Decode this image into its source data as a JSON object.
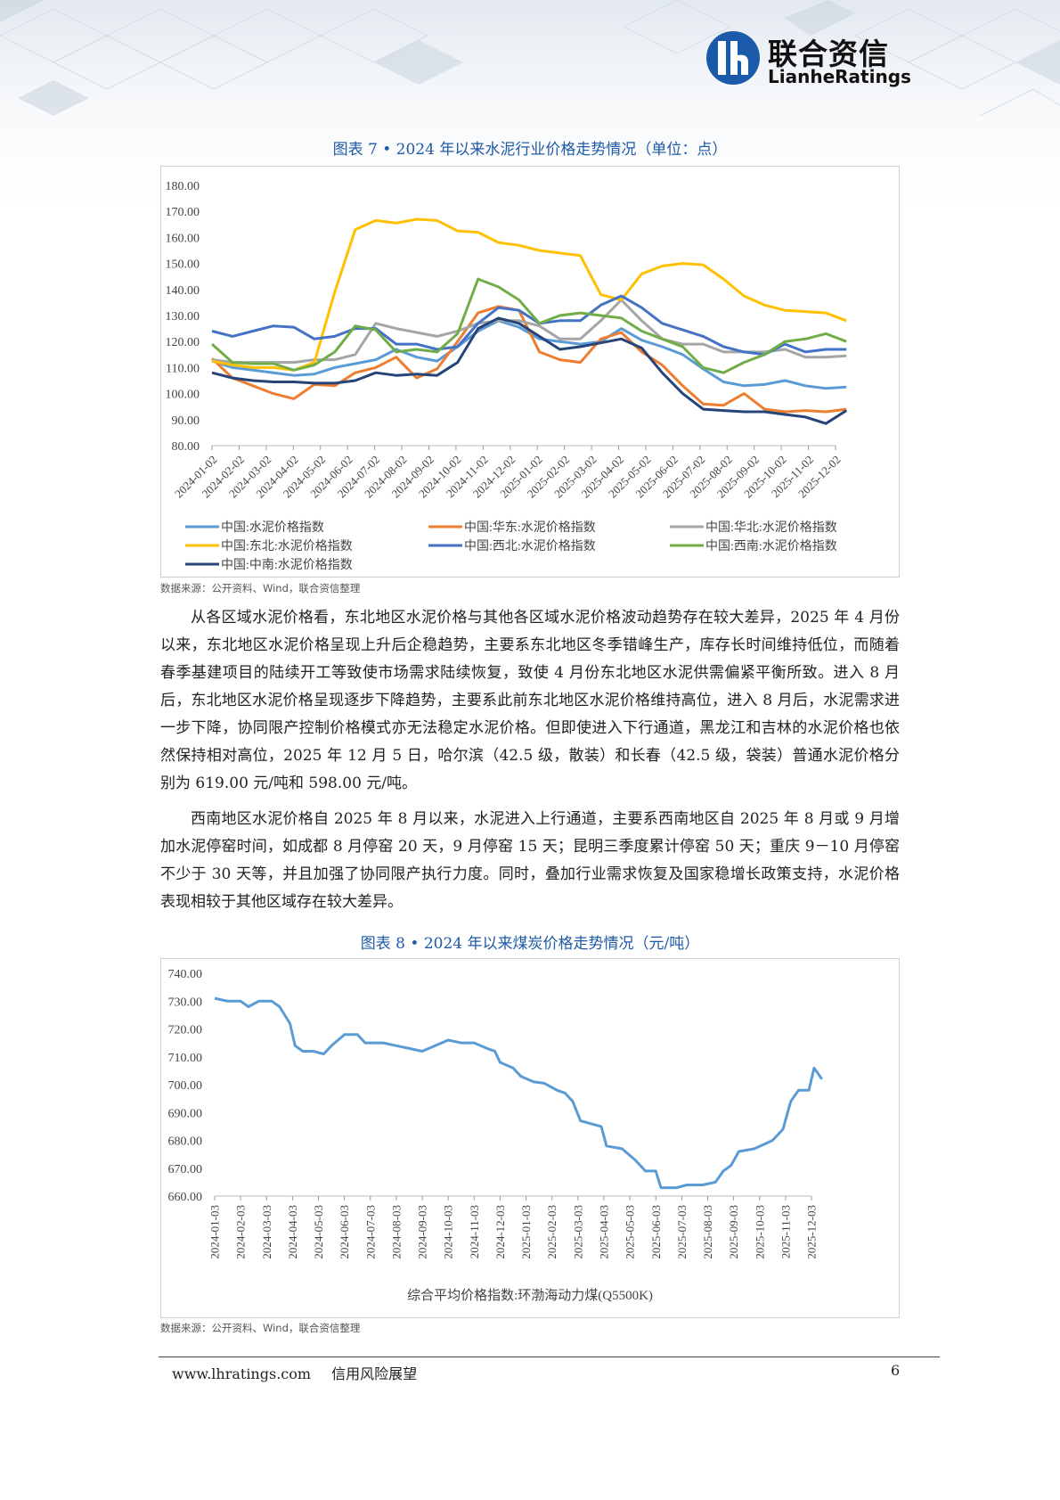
{
  "header": {
    "logo_cn": "联合资信",
    "logo_en": "LianheRatings",
    "brand_color": "#1a5aa8"
  },
  "figure7": {
    "title": "图表 7 • 2024 年以来水泥行业价格走势情况（单位：点）",
    "source": "数据来源：公开资料、Wind，联合资信整理"
  },
  "figure8": {
    "title": "图表 8 • 2024 年以来煤炭价格走势情况（元/吨）",
    "source": "数据来源：公开资料、Wind，联合资信整理"
  },
  "paragraphs": [
    "从各区域水泥价格看，东北地区水泥价格与其他各区域水泥价格波动趋势存在较大差异，2025 年 4 月份以来，东北地区水泥价格呈现上升后企稳趋势，主要系东北地区冬季错峰生产，库存长时间维持低位，而随着春季基建项目的陆续开工等致使市场需求陆续恢复，致使 4 月份东北地区水泥供需偏紧平衡所致。进入 8 月后，东北地区水泥价格呈现逐步下降趋势，主要系此前东北地区水泥价格维持高位，进入 8 月后，水泥需求进一步下降，协同限产控制价格模式亦无法稳定水泥价格。但即使进入下行通道，黑龙江和吉林的水泥价格也依然保持相对高位，2025 年 12 月 5 日，哈尔滨（42.5 级，散装）和长春（42.5 级，袋装）普通水泥价格分别为 619.00 元/吨和 598.00 元/吨。",
    "西南地区水泥价格自 2025 年 8 月以来，水泥进入上行通道，主要系西南地区自 2025 年 8 月或 9 月增加水泥停窑时间，如成都 8 月停窑 20 天，9 月停窑 15 天；昆明三季度累计停窑 50 天；重庆 9－10 月停窑不少于 30 天等，并且加强了协同限产执行力度。同时，叠加行业需求恢复及国家稳增长政策支持，水泥价格表现相较于其他区域存在较大差异。"
  ],
  "footer": {
    "site": "www.lhratings.com",
    "slogan": "信用风险展望",
    "page": "6"
  },
  "chart_data": [
    {
      "type": "line",
      "ylim": [
        80,
        180
      ],
      "yticks": [
        "180.00",
        "170.00",
        "160.00",
        "150.00",
        "140.00",
        "130.00",
        "120.00",
        "110.00",
        "100.00",
        "90.00",
        "80.00"
      ],
      "x_labels": [
        "2024-01-02",
        "2024-02-02",
        "2024-03-02",
        "2024-04-02",
        "2024-05-02",
        "2024-06-02",
        "2024-07-02",
        "2024-08-02",
        "2024-09-02",
        "2024-10-02",
        "2024-11-02",
        "2024-12-02",
        "2025-01-02",
        "2025-02-02",
        "2025-03-02",
        "2025-04-02",
        "2025-05-02",
        "2025-06-02",
        "2025-07-02",
        "2025-08-02",
        "2025-09-02",
        "2025-10-02",
        "2025-11-02",
        "2025-12-02"
      ],
      "x_end": 23.4,
      "series": [
        {
          "name": "中国:水泥价格指数",
          "color": "#5b9bd5",
          "values": [
            112.5,
            110,
            109,
            108,
            107,
            107.5,
            110,
            111.5,
            113,
            117,
            114,
            112.5,
            118,
            124,
            128,
            125.5,
            121,
            120,
            119,
            120,
            125,
            120.5,
            118,
            115,
            109.5,
            104.5,
            103,
            103.5,
            105,
            103,
            102,
            102.5
          ]
        },
        {
          "name": "中国:华东:水泥价格指数",
          "color": "#ed7d31",
          "values": [
            113.5,
            106,
            103,
            100,
            98,
            103.5,
            103,
            108,
            110,
            114,
            106,
            109.5,
            120,
            131,
            133.5,
            132,
            116,
            113,
            112,
            121,
            123.5,
            116,
            111,
            103,
            96,
            95.5,
            100,
            94,
            93,
            93.5,
            93,
            94
          ]
        },
        {
          "name": "中国:华北:水泥价格指数",
          "color": "#a5a5a5",
          "values": [
            113,
            112,
            112,
            112,
            112,
            113,
            113,
            115,
            127,
            125,
            123.5,
            122,
            124,
            127,
            128,
            128,
            126,
            121,
            121,
            128,
            136,
            128,
            121,
            119,
            119,
            116,
            116,
            116,
            117,
            114,
            114,
            114.5
          ]
        },
        {
          "name": "中国:东北:水泥价格指数",
          "color": "#ffc000",
          "values": [
            112.5,
            111,
            110,
            110,
            109,
            112,
            139,
            163,
            166.5,
            165.5,
            167,
            166.5,
            162.5,
            162,
            158,
            157,
            155,
            154,
            153,
            138,
            136,
            146,
            149,
            150,
            149.5,
            144,
            137.5,
            134,
            132,
            131.5,
            131,
            128
          ]
        },
        {
          "name": "中国:西北:水泥价格指数",
          "color": "#4472c4",
          "values": [
            124,
            122,
            124,
            126,
            125.5,
            121,
            122,
            125,
            125,
            119,
            119,
            117,
            118,
            127,
            133,
            132,
            127,
            128,
            128,
            134,
            137.5,
            133,
            127,
            124.5,
            122,
            118,
            116,
            115,
            119,
            116,
            117,
            117
          ]
        },
        {
          "name": "中国:西南:水泥价格指数",
          "color": "#70ad47",
          "values": [
            119,
            112,
            111.5,
            111.5,
            109,
            111,
            116,
            126,
            124.5,
            116,
            117,
            116,
            123,
            144,
            141,
            136,
            127,
            130,
            131,
            130,
            129,
            124,
            121,
            118,
            110,
            108,
            112,
            115,
            120,
            121,
            123,
            120
          ]
        },
        {
          "name": "中国:中南:水泥价格指数",
          "color": "#264478",
          "values": [
            108,
            106,
            105,
            104.5,
            104.5,
            104,
            104,
            105,
            108,
            107,
            107.5,
            107,
            112,
            125,
            129,
            127,
            122,
            117,
            118,
            119.5,
            121,
            117.5,
            108,
            100,
            94,
            93.5,
            93,
            93,
            92,
            91,
            88.5,
            93.5
          ]
        }
      ]
    },
    {
      "type": "line",
      "ylim": [
        660,
        740
      ],
      "yticks": [
        "740.00",
        "730.00",
        "720.00",
        "710.00",
        "700.00",
        "690.00",
        "680.00",
        "670.00",
        "660.00"
      ],
      "x_labels": [
        "2024-01-03",
        "2024-02-03",
        "2024-03-03",
        "2024-04-03",
        "2024-05-03",
        "2024-06-03",
        "2024-07-03",
        "2024-08-03",
        "2024-09-03",
        "2024-10-03",
        "2024-11-03",
        "2024-12-03",
        "2025-01-03",
        "2025-02-03",
        "2025-03-03",
        "2025-04-03",
        "2025-05-03",
        "2025-06-03",
        "2025-07-03",
        "2025-08-03",
        "2025-09-03",
        "2025-10-03",
        "2025-11-03",
        "2025-12-03"
      ],
      "xlabel": "综合平均价格指数:环渤海动力煤(Q5500K)",
      "series": [
        {
          "name": "综合平均价格指数:环渤海动力煤(Q5500K)",
          "color": "#5b9bd5",
          "points": [
            [
              0,
              731
            ],
            [
              0.5,
              730
            ],
            [
              1,
              730
            ],
            [
              1.3,
              728
            ],
            [
              1.7,
              730
            ],
            [
              2.2,
              730
            ],
            [
              2.5,
              728
            ],
            [
              2.9,
              722
            ],
            [
              3.1,
              714
            ],
            [
              3.4,
              712
            ],
            [
              3.8,
              712
            ],
            [
              4.2,
              711
            ],
            [
              4.5,
              714
            ],
            [
              5,
              718
            ],
            [
              5.5,
              718
            ],
            [
              5.8,
              715
            ],
            [
              6.5,
              715
            ],
            [
              7,
              714
            ],
            [
              7.5,
              713
            ],
            [
              8,
              712
            ],
            [
              8.5,
              714
            ],
            [
              9,
              716
            ],
            [
              9.5,
              715
            ],
            [
              10,
              715
            ],
            [
              10.5,
              713
            ],
            [
              10.8,
              712
            ],
            [
              11,
              708
            ],
            [
              11.5,
              706
            ],
            [
              11.8,
              703
            ],
            [
              12.3,
              701
            ],
            [
              12.7,
              700.5
            ],
            [
              13.2,
              698
            ],
            [
              13.5,
              697
            ],
            [
              13.8,
              694
            ],
            [
              14.1,
              687
            ],
            [
              14.5,
              686
            ],
            [
              14.9,
              685
            ],
            [
              15.1,
              678
            ],
            [
              15.7,
              677
            ],
            [
              16.2,
              673
            ],
            [
              16.6,
              669
            ],
            [
              17,
              669
            ],
            [
              17.2,
              663
            ],
            [
              17.8,
              663
            ],
            [
              18.2,
              664
            ],
            [
              18.8,
              664
            ],
            [
              19.3,
              665
            ],
            [
              19.6,
              669
            ],
            [
              19.9,
              671
            ],
            [
              20.2,
              676
            ],
            [
              20.8,
              677
            ],
            [
              21.5,
              680
            ],
            [
              21.9,
              684
            ],
            [
              22.2,
              694
            ],
            [
              22.5,
              698
            ],
            [
              22.9,
              698
            ],
            [
              23.1,
              706
            ],
            [
              23.4,
              702
            ]
          ]
        }
      ]
    }
  ]
}
